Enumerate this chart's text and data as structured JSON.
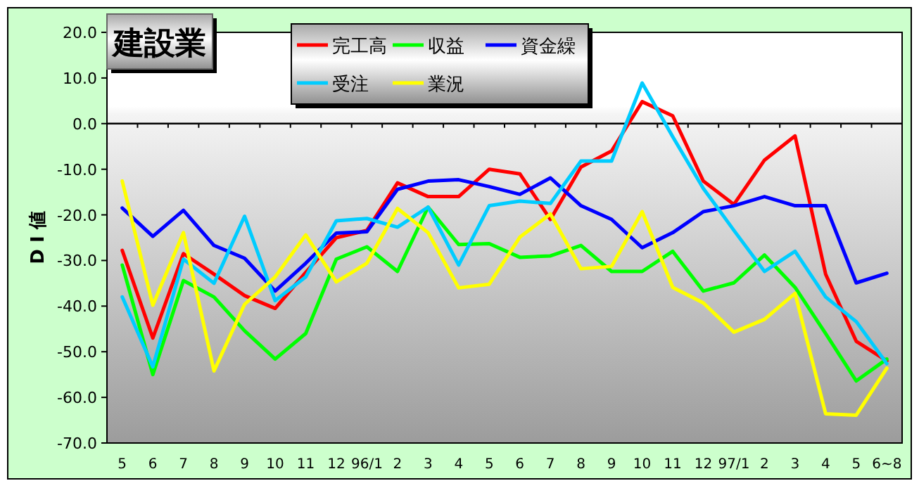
{
  "chart_data": {
    "type": "line",
    "title": "建設業",
    "ylabel": "D I 値",
    "categories": [
      "5",
      "6",
      "7",
      "8",
      "9",
      "10",
      "11",
      "12",
      "96/1",
      "2",
      "3",
      "4",
      "5",
      "6",
      "7",
      "8",
      "9",
      "10",
      "11",
      "12",
      "97/1",
      "2",
      "3",
      "4",
      "5",
      "6~8"
    ],
    "series": [
      {
        "name": "完工高",
        "color": "#ff0000",
        "values": [
          -27.8,
          -47,
          -28.5,
          -33,
          -37.7,
          -40.5,
          -32.6,
          -25,
          -23.4,
          -13,
          -16,
          -16,
          -10,
          -11,
          -21,
          -9.5,
          -6,
          4.8,
          1.7,
          -12.6,
          -17.7,
          -8,
          -2.7,
          -33,
          -47.7,
          -52
        ]
      },
      {
        "name": "収益",
        "color": "#00ff00",
        "values": [
          -31,
          -55,
          -34.4,
          -38,
          -45.4,
          -51.6,
          -46,
          -29.7,
          -27,
          -32.4,
          -18.3,
          -26.5,
          -26.3,
          -29.3,
          -29,
          -26.7,
          -32.4,
          -32.4,
          -28,
          -36.7,
          -34.9,
          -28.8,
          -35.9,
          -46,
          -56.4,
          -51.6
        ]
      },
      {
        "name": "資金繰",
        "color": "#0000ff",
        "values": [
          -18.5,
          -24.7,
          -19,
          -26.7,
          -29.5,
          -36.7,
          -30.6,
          -24,
          -23.7,
          -14.4,
          -12.6,
          -12.3,
          -13.8,
          -15.5,
          -11.9,
          -18,
          -21,
          -27.2,
          -23.9,
          -19.3,
          -18,
          -16,
          -18,
          -18,
          -34.9,
          -32.8
        ]
      },
      {
        "name": "受注",
        "color": "#00ccff",
        "values": [
          -38,
          -53.3,
          -29.7,
          -35,
          -20.3,
          -38.8,
          -33.6,
          -21.3,
          -20.8,
          -22.7,
          -18.3,
          -31,
          -18,
          -17,
          -17.5,
          -8.2,
          -8.2,
          8.9,
          -2.9,
          -14.2,
          -23.4,
          -32.4,
          -28,
          -38,
          -43.4,
          -52.6
        ]
      },
      {
        "name": "業況",
        "color": "#ffff00",
        "values": [
          -12.6,
          -39.8,
          -23.9,
          -54.2,
          -39.6,
          -33.6,
          -24.4,
          -34.7,
          -30.6,
          -18.6,
          -23.9,
          -36,
          -35.2,
          -24.9,
          -19.8,
          -31.8,
          -31.3,
          -19.3,
          -35.9,
          -39.3,
          -45.7,
          -42.9,
          -37.2,
          -63.6,
          -63.9,
          -53.6
        ]
      }
    ],
    "ylim": [
      -70,
      20
    ],
    "yticks": [
      {
        "value": 20,
        "label": "20.0"
      },
      {
        "value": 10,
        "label": "10.0"
      },
      {
        "value": 0,
        "label": "0.0"
      },
      {
        "value": -10,
        "label": "-10.0"
      },
      {
        "value": -20,
        "label": "-20.0"
      },
      {
        "value": -30,
        "label": "-30.0"
      },
      {
        "value": -40,
        "label": "-40.0"
      },
      {
        "value": -50,
        "label": "-50.0"
      },
      {
        "value": -60,
        "label": "-60.0"
      },
      {
        "value": -70,
        "label": "-70.0"
      }
    ],
    "ref_lines": [
      {
        "axis": "y",
        "value": 0,
        "color": "#000000",
        "line_style": "solid"
      }
    ],
    "grid": false,
    "legend": "top",
    "marker": "none",
    "line_style": "solid"
  }
}
